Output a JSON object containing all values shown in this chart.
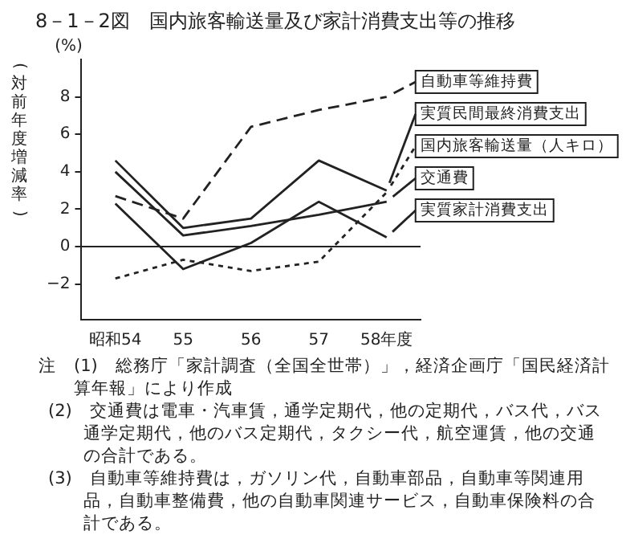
{
  "chart_data": {
    "type": "line",
    "title": "8－1－2図　国内旅客輸送量及び家計消費支出等の推移",
    "ylabel": "(対前年度増減率)",
    "categories": [
      "昭和54",
      "55",
      "56",
      "57",
      "58年度"
    ],
    "series": [
      {
        "name": "自動車等維持費",
        "color": "#222222",
        "line_style": "dashed",
        "values": [
          2.7,
          1.5,
          6.4,
          7.3,
          8.0
        ]
      },
      {
        "name": "実質民間最終消費支出",
        "color": "#222222",
        "line_style": "solid",
        "values": [
          4.6,
          1.0,
          1.5,
          4.6,
          3.0
        ]
      },
      {
        "name": "国内旅客輸送量（人キロ）",
        "color": "#222222",
        "line_style": "dotted",
        "values": [
          -1.7,
          -0.7,
          -1.3,
          -0.8,
          2.9
        ]
      },
      {
        "name": "交通費",
        "color": "#222222",
        "line_style": "solid",
        "values": [
          4.0,
          0.6,
          1.1,
          1.7,
          2.4
        ]
      },
      {
        "name": "実質家計消費支出",
        "color": "#222222",
        "line_style": "solid",
        "values": [
          2.3,
          -1.2,
          0.2,
          2.4,
          0.5
        ]
      }
    ],
    "ylim": [
      -3.9,
      10
    ],
    "yticks": [
      -2,
      0,
      2,
      4,
      6,
      8
    ],
    "grid": false,
    "legend": "right",
    "marker": "none",
    "ref_lines": [
      {
        "axis": "y",
        "value": 0
      }
    ],
    "annotations": [
      "(%)",
      "注　(1)　総務庁「家計調査（全国全世帯）」，経済企画庁「国民経済計算年報」により作成",
      "(2)　交通費は電車・汽車賃，通学定期代，他の定期代，バス代，バス通学定期代，他のバス定期代，タクシー代，航空運賃，他の交通の合計である。",
      "(3)　自動車等維持費は，ガソリン代，自動車部品，自動車等関連用品，自動車整備費，他の自動車関連サービス，自動車保険料の合計である。"
    ]
  }
}
